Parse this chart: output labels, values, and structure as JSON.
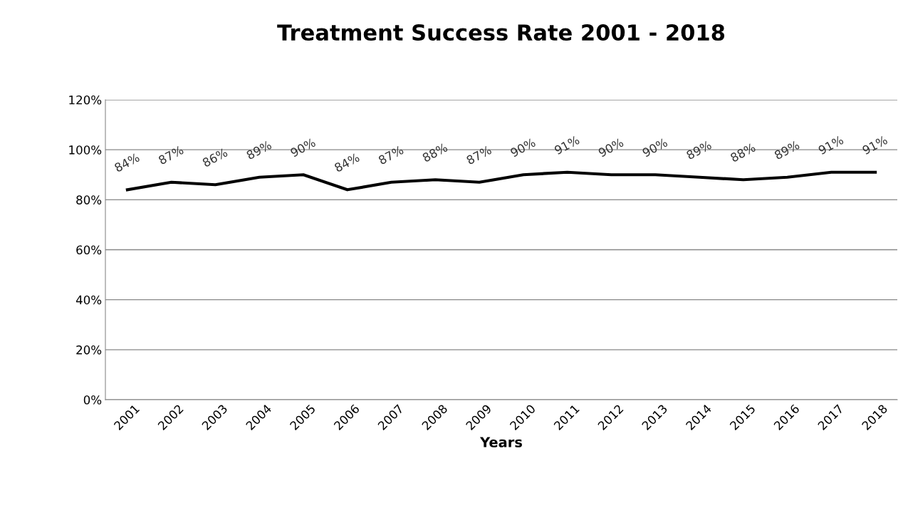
{
  "chart_data": {
    "type": "line",
    "title": "Treatment Success Rate 2001 - 2018",
    "xlabel": "Years",
    "categories": [
      "2001",
      "2002",
      "2003",
      "2004",
      "2005",
      "2006",
      "2007",
      "2008",
      "2009",
      "2010",
      "2011",
      "2012",
      "2013",
      "2014",
      "2015",
      "2016",
      "2017",
      "2018"
    ],
    "series": [
      {
        "color": "#000000",
        "values": [
          84,
          87,
          86,
          89,
          90,
          84,
          87,
          88,
          87,
          90,
          91,
          90,
          90,
          89,
          88,
          89,
          91,
          91
        ],
        "value_labels": [
          "84%",
          "87%",
          "86%",
          "89%",
          "90%",
          "84%",
          "87%",
          "88%",
          "87%",
          "90%",
          "91%",
          "90%",
          "90%",
          "89%",
          "88%",
          "89%",
          "91%",
          "91%"
        ]
      }
    ],
    "ylim": [
      0,
      120
    ],
    "yticks": [
      {
        "value": 0,
        "label": "0%"
      },
      {
        "value": 20,
        "label": "20%"
      },
      {
        "value": 40,
        "label": "40%"
      },
      {
        "value": 60,
        "label": "60%"
      },
      {
        "value": 80,
        "label": "80%"
      },
      {
        "value": 100,
        "label": "100%"
      },
      {
        "value": 120,
        "label": "120%"
      }
    ],
    "grid": "y",
    "legend": false,
    "marker": "none",
    "line_style": "solid"
  }
}
